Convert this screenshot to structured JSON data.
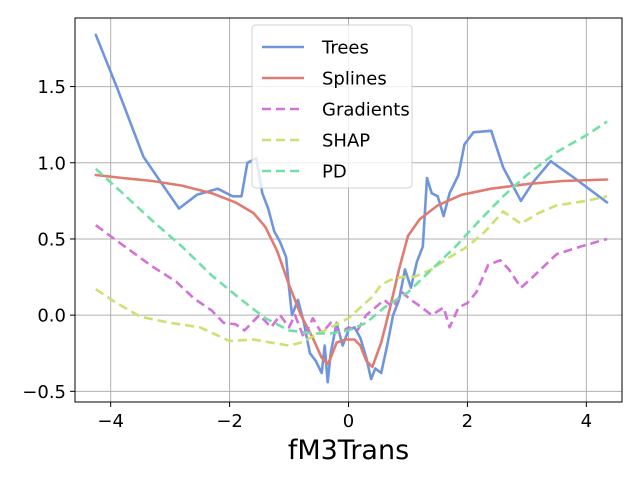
{
  "chart_data": {
    "type": "line",
    "title": "",
    "xlabel": "fM3Trans",
    "ylabel": "",
    "xlim": [
      -4.6,
      4.6
    ],
    "ylim": [
      -0.57,
      1.95
    ],
    "grid": true,
    "legend": {
      "placement": "top-center"
    },
    "xticks": [
      -4,
      -2,
      0,
      2,
      4
    ],
    "xtick_labels": [
      "−4",
      "−2",
      "0",
      "2",
      "4"
    ],
    "yticks": [
      -0.5,
      0.0,
      0.5,
      1.0,
      1.5
    ],
    "ytick_labels": [
      "−0.5",
      "0.0",
      "0.5",
      "1.0",
      "1.5"
    ],
    "series": [
      {
        "name": "Trees",
        "color": "#6f96dd",
        "dash": "solid",
        "points": [
          [
            -4.25,
            1.84
          ],
          [
            -3.9,
            1.5
          ],
          [
            -3.45,
            1.04
          ],
          [
            -3.1,
            0.84
          ],
          [
            -2.85,
            0.7
          ],
          [
            -2.55,
            0.79
          ],
          [
            -2.2,
            0.83
          ],
          [
            -1.95,
            0.78
          ],
          [
            -1.8,
            0.78
          ],
          [
            -1.7,
            1.0
          ],
          [
            -1.55,
            1.03
          ],
          [
            -1.45,
            0.8
          ],
          [
            -1.35,
            0.7
          ],
          [
            -1.25,
            0.55
          ],
          [
            -1.15,
            0.48
          ],
          [
            -1.05,
            0.38
          ],
          [
            -1.0,
            0.18
          ],
          [
            -0.95,
            0.0
          ],
          [
            -0.85,
            0.1
          ],
          [
            -0.75,
            -0.05
          ],
          [
            -0.65,
            -0.25
          ],
          [
            -0.55,
            -0.3
          ],
          [
            -0.45,
            -0.38
          ],
          [
            -0.4,
            -0.2
          ],
          [
            -0.35,
            -0.44
          ],
          [
            -0.3,
            -0.25
          ],
          [
            -0.2,
            -0.05
          ],
          [
            -0.1,
            -0.2
          ],
          [
            0.0,
            -0.1
          ],
          [
            0.1,
            -0.08
          ],
          [
            0.2,
            -0.15
          ],
          [
            0.3,
            -0.28
          ],
          [
            0.38,
            -0.42
          ],
          [
            0.45,
            -0.35
          ],
          [
            0.55,
            -0.38
          ],
          [
            0.65,
            -0.2
          ],
          [
            0.75,
            0.0
          ],
          [
            0.85,
            0.1
          ],
          [
            0.95,
            0.3
          ],
          [
            1.05,
            0.18
          ],
          [
            1.15,
            0.35
          ],
          [
            1.25,
            0.45
          ],
          [
            1.32,
            0.9
          ],
          [
            1.4,
            0.8
          ],
          [
            1.5,
            0.78
          ],
          [
            1.6,
            0.65
          ],
          [
            1.7,
            0.8
          ],
          [
            1.85,
            0.92
          ],
          [
            1.95,
            1.12
          ],
          [
            2.1,
            1.2
          ],
          [
            2.4,
            1.21
          ],
          [
            2.6,
            0.97
          ],
          [
            2.9,
            0.75
          ],
          [
            3.1,
            0.87
          ],
          [
            3.4,
            1.01
          ],
          [
            3.8,
            0.9
          ],
          [
            4.35,
            0.74
          ]
        ]
      },
      {
        "name": "Splines",
        "color": "#e07b72",
        "dash": "solid",
        "points": [
          [
            -4.25,
            0.92
          ],
          [
            -3.8,
            0.9
          ],
          [
            -3.3,
            0.88
          ],
          [
            -2.8,
            0.85
          ],
          [
            -2.3,
            0.8
          ],
          [
            -1.9,
            0.74
          ],
          [
            -1.6,
            0.67
          ],
          [
            -1.4,
            0.58
          ],
          [
            -1.2,
            0.42
          ],
          [
            -1.0,
            0.2
          ],
          [
            -0.8,
            0.0
          ],
          [
            -0.6,
            -0.15
          ],
          [
            -0.45,
            -0.28
          ],
          [
            -0.35,
            -0.32
          ],
          [
            -0.3,
            -0.28
          ],
          [
            -0.2,
            -0.18
          ],
          [
            -0.05,
            -0.16
          ],
          [
            0.1,
            -0.16
          ],
          [
            0.2,
            -0.2
          ],
          [
            0.3,
            -0.3
          ],
          [
            0.4,
            -0.34
          ],
          [
            0.55,
            -0.18
          ],
          [
            0.7,
            0.05
          ],
          [
            0.85,
            0.3
          ],
          [
            1.0,
            0.52
          ],
          [
            1.2,
            0.63
          ],
          [
            1.5,
            0.72
          ],
          [
            1.9,
            0.79
          ],
          [
            2.4,
            0.83
          ],
          [
            3.0,
            0.86
          ],
          [
            3.6,
            0.88
          ],
          [
            4.35,
            0.89
          ]
        ]
      },
      {
        "name": "Gradients",
        "color": "#d372d8",
        "dash": "dashed",
        "points": [
          [
            -4.25,
            0.59
          ],
          [
            -3.8,
            0.46
          ],
          [
            -3.3,
            0.32
          ],
          [
            -2.9,
            0.22
          ],
          [
            -2.6,
            0.11
          ],
          [
            -2.3,
            0.03
          ],
          [
            -2.1,
            -0.05
          ],
          [
            -1.9,
            -0.06
          ],
          [
            -1.75,
            -0.1
          ],
          [
            -1.5,
            0.0
          ],
          [
            -1.3,
            -0.08
          ],
          [
            -1.15,
            0.0
          ],
          [
            -1.0,
            -0.08
          ],
          [
            -0.9,
            0.0
          ],
          [
            -0.75,
            -0.15
          ],
          [
            -0.6,
            -0.02
          ],
          [
            -0.45,
            -0.12
          ],
          [
            -0.3,
            -0.05
          ],
          [
            -0.15,
            -0.12
          ],
          [
            0.0,
            -0.08
          ],
          [
            0.15,
            -0.1
          ],
          [
            0.3,
            0.0
          ],
          [
            0.45,
            0.05
          ],
          [
            0.6,
            0.1
          ],
          [
            0.75,
            0.05
          ],
          [
            0.9,
            0.15
          ],
          [
            1.05,
            0.1
          ],
          [
            1.2,
            0.06
          ],
          [
            1.4,
            0.0
          ],
          [
            1.6,
            0.05
          ],
          [
            1.7,
            -0.08
          ],
          [
            1.85,
            0.05
          ],
          [
            2.0,
            0.08
          ],
          [
            2.15,
            0.15
          ],
          [
            2.35,
            0.33
          ],
          [
            2.55,
            0.36
          ],
          [
            2.7,
            0.3
          ],
          [
            2.9,
            0.18
          ],
          [
            3.1,
            0.25
          ],
          [
            3.5,
            0.4
          ],
          [
            3.9,
            0.45
          ],
          [
            4.35,
            0.5
          ]
        ]
      },
      {
        "name": "SHAP",
        "color": "#cfe072",
        "dash": "dashed",
        "points": [
          [
            -4.25,
            0.17
          ],
          [
            -3.9,
            0.08
          ],
          [
            -3.5,
            -0.01
          ],
          [
            -3.0,
            -0.05
          ],
          [
            -2.5,
            -0.08
          ],
          [
            -2.0,
            -0.17
          ],
          [
            -1.6,
            -0.16
          ],
          [
            -1.3,
            -0.18
          ],
          [
            -1.0,
            -0.2
          ],
          [
            -0.8,
            -0.18
          ],
          [
            -0.6,
            -0.14
          ],
          [
            -0.4,
            -0.1
          ],
          [
            -0.2,
            -0.06
          ],
          [
            0.0,
            -0.02
          ],
          [
            0.2,
            0.05
          ],
          [
            0.4,
            0.12
          ],
          [
            0.55,
            0.2
          ],
          [
            0.7,
            0.23
          ],
          [
            0.9,
            0.25
          ],
          [
            1.1,
            0.25
          ],
          [
            1.4,
            0.3
          ],
          [
            1.7,
            0.38
          ],
          [
            2.0,
            0.45
          ],
          [
            2.3,
            0.55
          ],
          [
            2.6,
            0.68
          ],
          [
            2.9,
            0.6
          ],
          [
            3.2,
            0.67
          ],
          [
            3.5,
            0.72
          ],
          [
            4.0,
            0.75
          ],
          [
            4.35,
            0.78
          ]
        ]
      },
      {
        "name": "PD",
        "color": "#72e0a6",
        "dash": "dashed",
        "points": [
          [
            -4.25,
            0.96
          ],
          [
            -3.8,
            0.8
          ],
          [
            -3.3,
            0.62
          ],
          [
            -2.8,
            0.45
          ],
          [
            -2.3,
            0.26
          ],
          [
            -1.8,
            0.1
          ],
          [
            -1.4,
            -0.02
          ],
          [
            -1.0,
            -0.1
          ],
          [
            -0.6,
            -0.12
          ],
          [
            -0.3,
            -0.12
          ],
          [
            0.0,
            -0.1
          ],
          [
            0.3,
            -0.05
          ],
          [
            0.6,
            0.05
          ],
          [
            1.0,
            0.15
          ],
          [
            1.4,
            0.3
          ],
          [
            1.8,
            0.45
          ],
          [
            2.2,
            0.62
          ],
          [
            2.6,
            0.78
          ],
          [
            3.0,
            0.92
          ],
          [
            3.5,
            1.07
          ],
          [
            4.0,
            1.18
          ],
          [
            4.35,
            1.27
          ]
        ]
      }
    ]
  }
}
